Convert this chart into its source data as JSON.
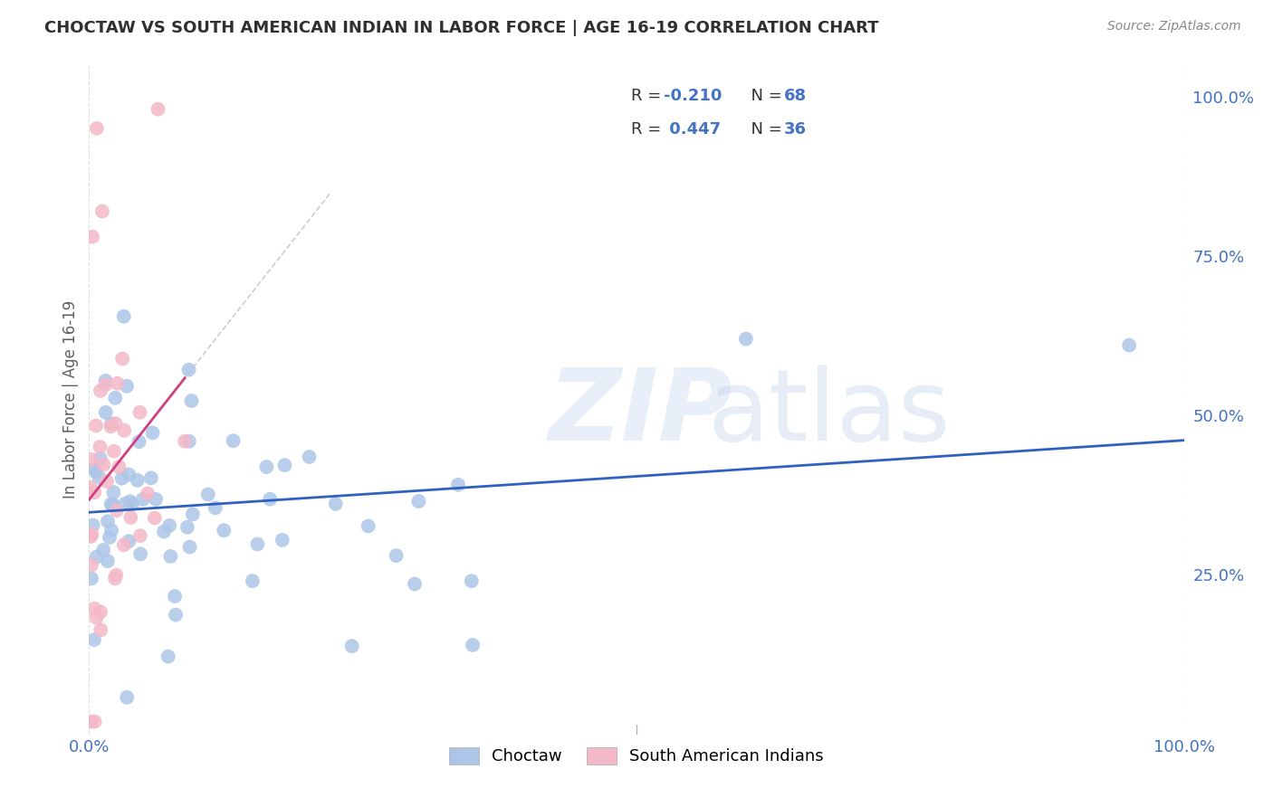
{
  "title": "CHOCTAW VS SOUTH AMERICAN INDIAN IN LABOR FORCE | AGE 16-19 CORRELATION CHART",
  "source": "Source: ZipAtlas.com",
  "ylabel": "In Labor Force | Age 16-19",
  "choctaw_r": -0.21,
  "choctaw_n": 68,
  "south_american_r": 0.447,
  "south_american_n": 36,
  "choctaw_color": "#adc6e8",
  "south_american_color": "#f4b8c8",
  "choctaw_line_color": "#3060c0",
  "south_american_line_color": "#d04080",
  "dash_line_color": "#c8c8c8",
  "background_color": "#ffffff",
  "grid_color": "#d8d8d8",
  "legend_label_choctaw": "Choctaw",
  "legend_label_south_american": "South American Indians",
  "title_color": "#303030",
  "source_color": "#888888",
  "axis_label_color": "#4472C4",
  "ylabel_color": "#606060"
}
